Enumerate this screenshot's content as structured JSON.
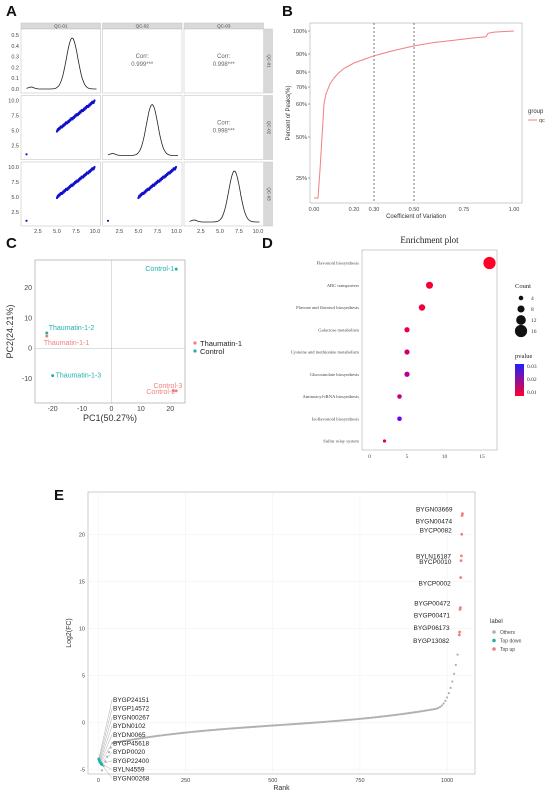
{
  "panel_letters": {
    "a": "A",
    "b": "B",
    "c": "C",
    "d": "D",
    "e": "E"
  },
  "chart_data": [
    {
      "type": "scatter",
      "panel": "A",
      "strip_labels": [
        "QC-01",
        "QC-02",
        "QC-03"
      ],
      "correlations": [
        {
          "row": 1,
          "col": 2,
          "text": "Corr:",
          "value": "0.999***"
        },
        {
          "row": 1,
          "col": 3,
          "text": "Corr:",
          "value": "0.998***"
        },
        {
          "row": 2,
          "col": 3,
          "text": "Corr:",
          "value": "0.998***"
        }
      ],
      "diag_density_yticks": [
        "0.5",
        "0.4",
        "0.3",
        "0.2",
        "0.1",
        "0.0"
      ],
      "yticks": [
        "10.0",
        "7.5",
        "5.0",
        "2.5"
      ],
      "xticks": [
        "2.5",
        "5.0",
        "7.5",
        "10.0"
      ]
    },
    {
      "type": "line",
      "panel": "B",
      "xlabel": "Coefficient of Variation",
      "ylabel": "Percent of Peaks(%)",
      "xticks": [
        "0.00",
        "0.20",
        "0.30",
        "0.50",
        "0.75",
        "1.00"
      ],
      "yticks": [
        "100%",
        "90%",
        "80%",
        "70%",
        "60%",
        "50%",
        "25%"
      ],
      "vlines": [
        0.3,
        0.5
      ],
      "legend_title": "group",
      "legend_entry": "qc",
      "series_color": "#f08080",
      "x": [
        0.0,
        0.02,
        0.03,
        0.04,
        0.05,
        0.06,
        0.08,
        0.1,
        0.12,
        0.15,
        0.2,
        0.25,
        0.3,
        0.4,
        0.5,
        0.6,
        0.7,
        0.8,
        0.86,
        0.87,
        0.9,
        1.0
      ],
      "y": [
        0.0,
        0.0,
        0.3,
        0.5,
        0.6,
        0.66,
        0.72,
        0.76,
        0.79,
        0.82,
        0.85,
        0.87,
        0.89,
        0.915,
        0.935,
        0.95,
        0.96,
        0.97,
        0.975,
        0.99,
        0.995,
        1.0
      ]
    },
    {
      "type": "scatter",
      "panel": "C",
      "xlabel": "PC1(50.27%)",
      "ylabel": "PC2(24.21%)",
      "xticks": [
        "-20",
        "-10",
        "0",
        "10",
        "20"
      ],
      "yticks": [
        "20",
        "10",
        "0",
        "-10"
      ],
      "xlim": [
        -26,
        25
      ],
      "ylim": [
        -18,
        29
      ],
      "legend": [
        {
          "name": "Thaumatin-1",
          "color": "#f08080"
        },
        {
          "name": "Control",
          "color": "#20b2aa"
        }
      ],
      "points": [
        {
          "label": "Control-1",
          "x": 22,
          "y": 26,
          "group": "Control"
        },
        {
          "label": "Thaumatin-1-2",
          "x": -22,
          "y": 5,
          "group": "Control"
        },
        {
          "label": "Thaumatin-1-1",
          "x": -22,
          "y": 4,
          "group": "Thaumatin-1"
        },
        {
          "label": "Thaumatin-1-3",
          "x": -20,
          "y": -9,
          "group": "Control"
        },
        {
          "label": "Control-3",
          "x": 21,
          "y": -14,
          "group": "Thaumatin-1"
        },
        {
          "label": "Control-2",
          "x": 22,
          "y": -14,
          "group": "Thaumatin-1"
        }
      ]
    },
    {
      "type": "scatter",
      "panel": "D",
      "title": "Enrichment plot",
      "xticks": [
        "0",
        "5",
        "10",
        "15"
      ],
      "xlim": [
        -1,
        17
      ],
      "size_legend_title": "Count",
      "size_legend": [
        4,
        8,
        12,
        16
      ],
      "color_legend_title": "pvalue",
      "color_legend_ticks": [
        "0.03",
        "0.02",
        "0.01"
      ],
      "terms": [
        {
          "name": "Flavonoid biosynthesis",
          "count": 16,
          "pvalue": 0.001
        },
        {
          "name": "ABC transporters",
          "count": 8,
          "pvalue": 0.003
        },
        {
          "name": "Flavone and flavonol biosynthesis",
          "count": 7,
          "pvalue": 0.004
        },
        {
          "name": "Galactose metabolism",
          "count": 5,
          "pvalue": 0.006
        },
        {
          "name": "Cysteine and methionine metabolism",
          "count": 5,
          "pvalue": 0.01
        },
        {
          "name": "Glucosinolate biosynthesis",
          "count": 5,
          "pvalue": 0.015
        },
        {
          "name": "Aminoacyl-tRNA biosynthesis",
          "count": 4,
          "pvalue": 0.012
        },
        {
          "name": "Isoflavonoid biosynthesis",
          "count": 4,
          "pvalue": 0.03
        },
        {
          "name": "Sulfur relay system",
          "count": 2,
          "pvalue": 0.008
        }
      ]
    },
    {
      "type": "scatter",
      "panel": "E",
      "xlabel": "Rank",
      "ylabel": "Log2(FC)",
      "xticks": [
        "0",
        "250",
        "500",
        "750",
        "1000"
      ],
      "yticks": [
        "20",
        "15",
        "10",
        "5",
        "0",
        "-5"
      ],
      "xlim": [
        -30,
        1080
      ],
      "ylim": [
        -5.5,
        24.5
      ],
      "legend_title": "label",
      "legend": [
        {
          "name": "Others",
          "color": "#b0b0b0"
        },
        {
          "name": "Top down",
          "color": "#20b2aa"
        },
        {
          "name": "Top up",
          "color": "#f08080"
        }
      ],
      "top_up": [
        {
          "label": "BYGN03669",
          "x": 1044,
          "y": 22.2
        },
        {
          "label": "BYGN00474",
          "x": 1043,
          "y": 22.0
        },
        {
          "label": "BYCP0082",
          "x": 1042,
          "y": 20.0
        },
        {
          "label": "BYCP0010",
          "x": 1041,
          "y": 17.7
        },
        {
          "label": "BYLN16187",
          "x": 1040,
          "y": 17.2
        },
        {
          "label": "BYCP0002",
          "x": 1039,
          "y": 15.4
        },
        {
          "label": "BYGP00472",
          "x": 1038,
          "y": 12.2
        },
        {
          "label": "BYGP00471",
          "x": 1037,
          "y": 12.0
        },
        {
          "label": "BYGP06173",
          "x": 1036,
          "y": 9.6
        },
        {
          "label": "BYGP13082",
          "x": 1035,
          "y": 9.3
        }
      ],
      "top_down": [
        {
          "label": "BYGP24151",
          "x": 1,
          "y": -3.9
        },
        {
          "label": "BYGP14572",
          "x": 2,
          "y": -4.0
        },
        {
          "label": "BYGN00267",
          "x": 3,
          "y": -4.1
        },
        {
          "label": "BYDN0102",
          "x": 4,
          "y": -4.2
        },
        {
          "label": "BYDN0065",
          "x": 5,
          "y": -4.25
        },
        {
          "label": "BYGP45618",
          "x": 6,
          "y": -4.3
        },
        {
          "label": "BYDP0020",
          "x": 7,
          "y": -4.35
        },
        {
          "label": "BYGP22400",
          "x": 8,
          "y": -4.4
        },
        {
          "label": "BYLN4559",
          "x": 9,
          "y": -4.45
        },
        {
          "label": "BYGN00268",
          "x": 10,
          "y": -4.5
        }
      ]
    }
  ]
}
